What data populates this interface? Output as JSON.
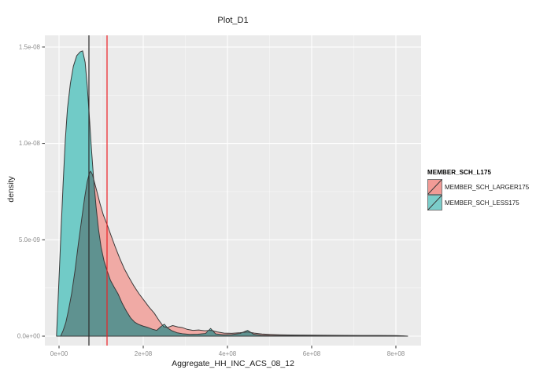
{
  "title": "Plot_D1",
  "chart_data": {
    "type": "area",
    "subtype": "density",
    "title": "Plot_D1",
    "xlabel": "Aggregate_HH_INC_ACS_08_12",
    "ylabel": "density",
    "grid": "on",
    "panel_bg": "#EBEBEB",
    "grid_color": "#FFFFFF",
    "tick_text_color": "#8E8E8E",
    "outline_color": "#3A3A3A",
    "overlap_fill": "#5F9290",
    "xlim": [
      -34000000,
      860000000
    ],
    "ylim": [
      -4.9e-10,
      1.565e-08
    ],
    "x_ticks": [
      {
        "v": 0,
        "label": "0e+00"
      },
      {
        "v": 200000000.0,
        "label": "2e+08"
      },
      {
        "v": 400000000.0,
        "label": "4e+08"
      },
      {
        "v": 600000000.0,
        "label": "6e+08"
      },
      {
        "v": 800000000.0,
        "label": "8e+08"
      }
    ],
    "y_ticks": [
      {
        "v": 0,
        "label": "0.0e+00"
      },
      {
        "v": 5e-09,
        "label": "5.0e-09"
      },
      {
        "v": 1e-08,
        "label": "1.0e-08"
      },
      {
        "v": 1.5e-08,
        "label": "1.5e-08"
      }
    ],
    "legend_position": "right",
    "legend_title": "MEMBER_SCH_L175",
    "vlines": [
      {
        "x": 71000000.0,
        "color": "#2B2B2B",
        "name": "vline-black"
      },
      {
        "x": 114000000.0,
        "color": "#ED2024",
        "name": "vline-red"
      }
    ],
    "series": [
      {
        "name": "MEMBER_SCH_LARGER175",
        "fill": "#F0AAA5",
        "legend_fill": "#F29B96",
        "points": [
          [
            4000000.0,
            0
          ],
          [
            10000000.0,
            3e-10
          ],
          [
            16000000.0,
            7e-10
          ],
          [
            22000000.0,
            1.3e-09
          ],
          [
            30000000.0,
            2.2e-09
          ],
          [
            38000000.0,
            3.4e-09
          ],
          [
            46000000.0,
            4.8e-09
          ],
          [
            54000000.0,
            6.1e-09
          ],
          [
            61000000.0,
            7.2e-09
          ],
          [
            67000000.0,
            8e-09
          ],
          [
            72000000.0,
            8.45e-09
          ],
          [
            75000000.0,
            8.56e-09
          ],
          [
            79000000.0,
            8.4e-09
          ],
          [
            84000000.0,
            8e-09
          ],
          [
            90000000.0,
            7.5e-09
          ],
          [
            97000000.0,
            6.9e-09
          ],
          [
            105000000.0,
            6.3e-09
          ],
          [
            114000000.0,
            5.8e-09
          ],
          [
            124000000.0,
            5.2e-09
          ],
          [
            134000000.0,
            4.6e-09
          ],
          [
            144000000.0,
            4.05e-09
          ],
          [
            155000000.0,
            3.5e-09
          ],
          [
            166000000.0,
            3.05e-09
          ],
          [
            178000000.0,
            2.6e-09
          ],
          [
            190000000.0,
            2.2e-09
          ],
          [
            202000000.0,
            1.85e-09
          ],
          [
            214000000.0,
            1.5e-09
          ],
          [
            226000000.0,
            1.2e-09
          ],
          [
            238000000.0,
            8e-10
          ],
          [
            248000000.0,
            5e-10
          ],
          [
            258000000.0,
            4.5e-10
          ],
          [
            270000000.0,
            5.5e-10
          ],
          [
            282000000.0,
            4.8e-10
          ],
          [
            292000000.0,
            4.5e-10
          ],
          [
            305000000.0,
            3.5e-10
          ],
          [
            318000000.0,
            3e-10
          ],
          [
            332000000.0,
            3.2e-10
          ],
          [
            346000000.0,
            2.8e-10
          ],
          [
            362000000.0,
            3e-10
          ],
          [
            376000000.0,
            2.2e-10
          ],
          [
            392000000.0,
            1.6e-10
          ],
          [
            410000000.0,
            1.5e-10
          ],
          [
            430000000.0,
            1.8e-10
          ],
          [
            448000000.0,
            2.2e-10
          ],
          [
            464000000.0,
            1.6e-10
          ],
          [
            482000000.0,
            1.1e-10
          ],
          [
            500000000.0,
            9e-11
          ],
          [
            525000000.0,
            7e-11
          ],
          [
            550000000.0,
            6e-11
          ],
          [
            580000000.0,
            5.5e-11
          ],
          [
            610000000.0,
            5e-11
          ],
          [
            645000000.0,
            4.5e-11
          ],
          [
            680000000.0,
            4e-11
          ],
          [
            720000000.0,
            3.8e-11
          ],
          [
            760000000.0,
            3.4e-11
          ],
          [
            800000000.0,
            3e-11
          ],
          [
            818000000.0,
            1.5e-11
          ],
          [
            828000000.0,
            0
          ]
        ]
      },
      {
        "name": "MEMBER_SCH_LESS175",
        "fill": "#71CBC7",
        "legend_fill": "#7BCDCA",
        "points": [
          [
            -6000000.0,
            0
          ],
          [
            0,
            3e-09
          ],
          [
            5000000.0,
            5.6e-09
          ],
          [
            10000000.0,
            8e-09
          ],
          [
            15000000.0,
            1.02e-08
          ],
          [
            20000000.0,
            1.18e-08
          ],
          [
            27000000.0,
            1.31e-08
          ],
          [
            34000000.0,
            1.4e-08
          ],
          [
            42000000.0,
            1.455e-08
          ],
          [
            50000000.0,
            1.475e-08
          ],
          [
            56000000.0,
            1.48e-08
          ],
          [
            62000000.0,
            1.42e-08
          ],
          [
            67000000.0,
            1.3e-08
          ],
          [
            72000000.0,
            1.14e-08
          ],
          [
            77000000.0,
            9.7e-09
          ],
          [
            82000000.0,
            8.2e-09
          ],
          [
            88000000.0,
            6.7e-09
          ],
          [
            94000000.0,
            5.5e-09
          ],
          [
            100000000.0,
            4.6e-09
          ],
          [
            107000000.0,
            3.9e-09
          ],
          [
            114000000.0,
            3.4e-09
          ],
          [
            122000000.0,
            2.9e-09
          ],
          [
            132000000.0,
            2.5e-09
          ],
          [
            140000000.0,
            2.2e-09
          ],
          [
            150000000.0,
            1.7e-09
          ],
          [
            160000000.0,
            1.3e-09
          ],
          [
            170000000.0,
            9.5e-10
          ],
          [
            180000000.0,
            7.2e-10
          ],
          [
            190000000.0,
            6e-10
          ],
          [
            200000000.0,
            5.2e-10
          ],
          [
            210000000.0,
            4.6e-10
          ],
          [
            222000000.0,
            3.6e-10
          ],
          [
            232000000.0,
            3e-10
          ],
          [
            242000000.0,
            5e-10
          ],
          [
            250000000.0,
            6.2e-10
          ],
          [
            258000000.0,
            4.2e-10
          ],
          [
            268000000.0,
            2.8e-10
          ],
          [
            280000000.0,
            1.8e-10
          ],
          [
            295000000.0,
            1.2e-10
          ],
          [
            310000000.0,
            9e-11
          ],
          [
            330000000.0,
            1e-10
          ],
          [
            348000000.0,
            1.4e-10
          ],
          [
            360000000.0,
            4e-10
          ],
          [
            372000000.0,
            1.2e-10
          ],
          [
            390000000.0,
            7e-11
          ],
          [
            410000000.0,
            8e-11
          ],
          [
            430000000.0,
            1.4e-10
          ],
          [
            448000000.0,
            3e-10
          ],
          [
            462000000.0,
            1e-10
          ],
          [
            480000000.0,
            5e-11
          ],
          [
            500000000.0,
            3.5e-11
          ],
          [
            530000000.0,
            3e-11
          ],
          [
            560000000.0,
            2.5e-11
          ],
          [
            600000000.0,
            2e-11
          ],
          [
            650000000.0,
            1.5e-11
          ],
          [
            700000000.0,
            1.2e-11
          ],
          [
            750000000.0,
            1e-11
          ],
          [
            800000000.0,
            6e-12
          ],
          [
            820000000.0,
            0
          ]
        ]
      }
    ]
  }
}
